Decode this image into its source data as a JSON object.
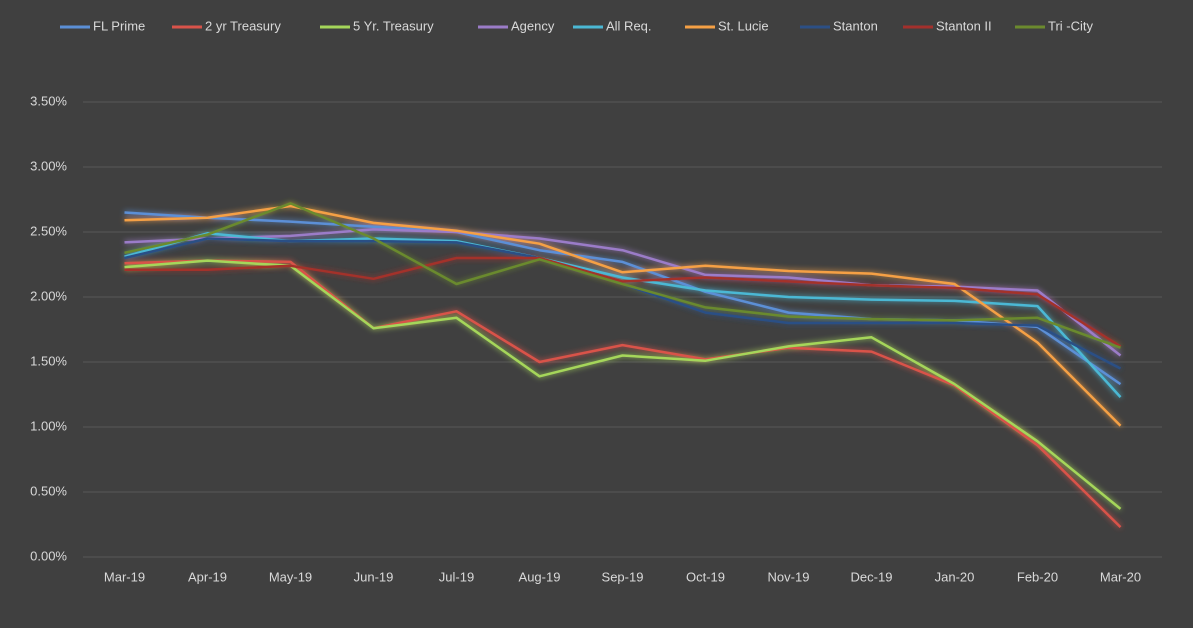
{
  "chart_data": {
    "type": "line",
    "categories": [
      "Mar-19",
      "Apr-19",
      "May-19",
      "Jun-19",
      "Jul-19",
      "Aug-19",
      "Sep-19",
      "Oct-19",
      "Nov-19",
      "Dec-19",
      "Jan-20",
      "Feb-20",
      "Mar-20"
    ],
    "ylim": [
      0,
      3.5
    ],
    "yticks": [
      {
        "value": 0,
        "label": "0.00%"
      },
      {
        "value": 0.5,
        "label": "0.50%"
      },
      {
        "value": 1,
        "label": "1.00%"
      },
      {
        "value": 1.5,
        "label": "1.50%"
      },
      {
        "value": 2,
        "label": "2.00%"
      },
      {
        "value": 2.5,
        "label": "2.50%"
      },
      {
        "value": 3,
        "label": "3.00%"
      },
      {
        "value": 3.5,
        "label": "3.50%"
      }
    ],
    "grid": true,
    "legend": "top",
    "series": [
      {
        "name": "FL Prime",
        "color": "#5b8fd6",
        "values": [
          2.65,
          2.61,
          2.58,
          2.54,
          2.5,
          2.36,
          2.27,
          2.04,
          1.88,
          1.83,
          1.82,
          1.77,
          1.33
        ]
      },
      {
        "name": "2 yr Treasury",
        "color": "#d9534a",
        "values": [
          2.26,
          2.28,
          2.27,
          1.76,
          1.89,
          1.5,
          1.63,
          1.52,
          1.61,
          1.58,
          1.32,
          0.86,
          0.23
        ]
      },
      {
        "name": "5 Yr. Treasury",
        "color": "#a5d65a",
        "values": [
          2.23,
          2.28,
          2.24,
          1.76,
          1.84,
          1.39,
          1.55,
          1.51,
          1.62,
          1.69,
          1.33,
          0.89,
          0.37
        ]
      },
      {
        "name": "Agency",
        "color": "#9b7cc8",
        "values": [
          2.42,
          2.45,
          2.47,
          2.52,
          2.5,
          2.45,
          2.36,
          2.17,
          2.15,
          2.09,
          2.08,
          2.05,
          1.55
        ]
      },
      {
        "name": "All Req.",
        "color": "#4bb8d4",
        "values": [
          2.31,
          2.49,
          2.43,
          2.45,
          2.43,
          2.3,
          2.15,
          2.05,
          2.0,
          1.98,
          1.97,
          1.93,
          1.23
        ]
      },
      {
        "name": "St. Lucie",
        "color": "#f5a045",
        "values": [
          2.59,
          2.61,
          2.7,
          2.57,
          2.51,
          2.41,
          2.19,
          2.24,
          2.2,
          2.18,
          2.1,
          1.65,
          1.01
        ]
      },
      {
        "name": "Stanton",
        "color": "#2c4f85",
        "values": [
          2.3,
          2.45,
          2.43,
          2.43,
          2.42,
          2.3,
          2.1,
          1.88,
          1.8,
          1.8,
          1.8,
          1.78,
          1.45
        ]
      },
      {
        "name": "Stanton II",
        "color": "#a3302c",
        "values": [
          2.21,
          2.21,
          2.24,
          2.14,
          2.3,
          2.3,
          2.12,
          2.15,
          2.12,
          2.09,
          2.07,
          2.02,
          1.62
        ]
      },
      {
        "name": "Tri -City",
        "color": "#6b8a2e",
        "values": [
          2.34,
          2.48,
          2.72,
          2.45,
          2.1,
          2.29,
          2.1,
          1.92,
          1.85,
          1.83,
          1.82,
          1.84,
          1.61
        ]
      }
    ]
  }
}
